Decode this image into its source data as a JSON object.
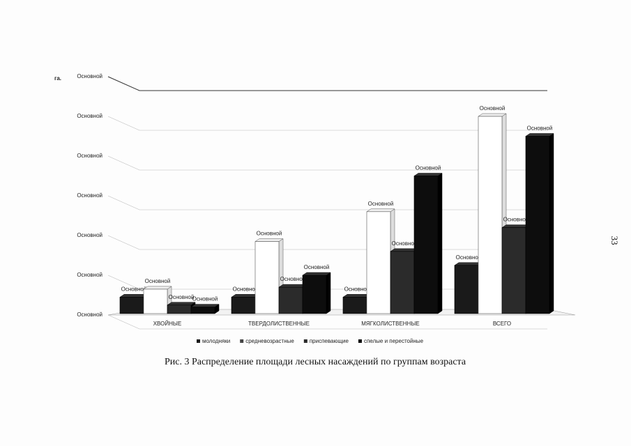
{
  "chart_data": {
    "type": "bar3d",
    "y_label": "га.",
    "categories": [
      "ХВОЙНЫЕ",
      "ТВЕРДОЛИСТВЕННЫЕ",
      "МЯГКОЛИСТВЕННЫЕ",
      "ВСЕГО"
    ],
    "ylim": [
      0,
      6
    ],
    "yticks": [
      {
        "value": 0,
        "label": "Основной"
      },
      {
        "value": 1,
        "label": "Основной"
      },
      {
        "value": 2,
        "label": "Основной"
      },
      {
        "value": 3,
        "label": "Основной"
      },
      {
        "value": 4,
        "label": "Основной"
      },
      {
        "value": 5,
        "label": "Основной"
      },
      {
        "value": 6,
        "label": "Основной"
      }
    ],
    "grid": true,
    "legend": "bottom",
    "series": [
      {
        "name": "молодняки",
        "color": "#1a1a1a",
        "values": [
          0.45,
          0.45,
          0.45,
          1.25
        ],
        "value_labels": [
          "Основной",
          "Основной",
          "Основной",
          "Основной"
        ]
      },
      {
        "name": "средневозрастные",
        "color": "#ffffff",
        "values": [
          0.65,
          1.85,
          2.6,
          5.0
        ],
        "value_labels": [
          "Основной",
          "Основной",
          "Основной",
          "Основной"
        ]
      },
      {
        "name": "приспевающие",
        "color": "#2b2b2b",
        "values": [
          0.25,
          0.7,
          1.6,
          2.2
        ],
        "value_labels": [
          "Основной",
          "Основной",
          "Основной",
          "Основной"
        ]
      },
      {
        "name": "спелые и перестойные",
        "color": "#0d0d0d",
        "values": [
          0.2,
          1.0,
          3.5,
          4.5
        ],
        "value_labels": [
          "Основной",
          "Основной",
          "Основной",
          "Основной"
        ]
      }
    ]
  },
  "caption": "Рис. 3 Распределение площади лесных насаждений по группам возраста",
  "page_number": "33"
}
